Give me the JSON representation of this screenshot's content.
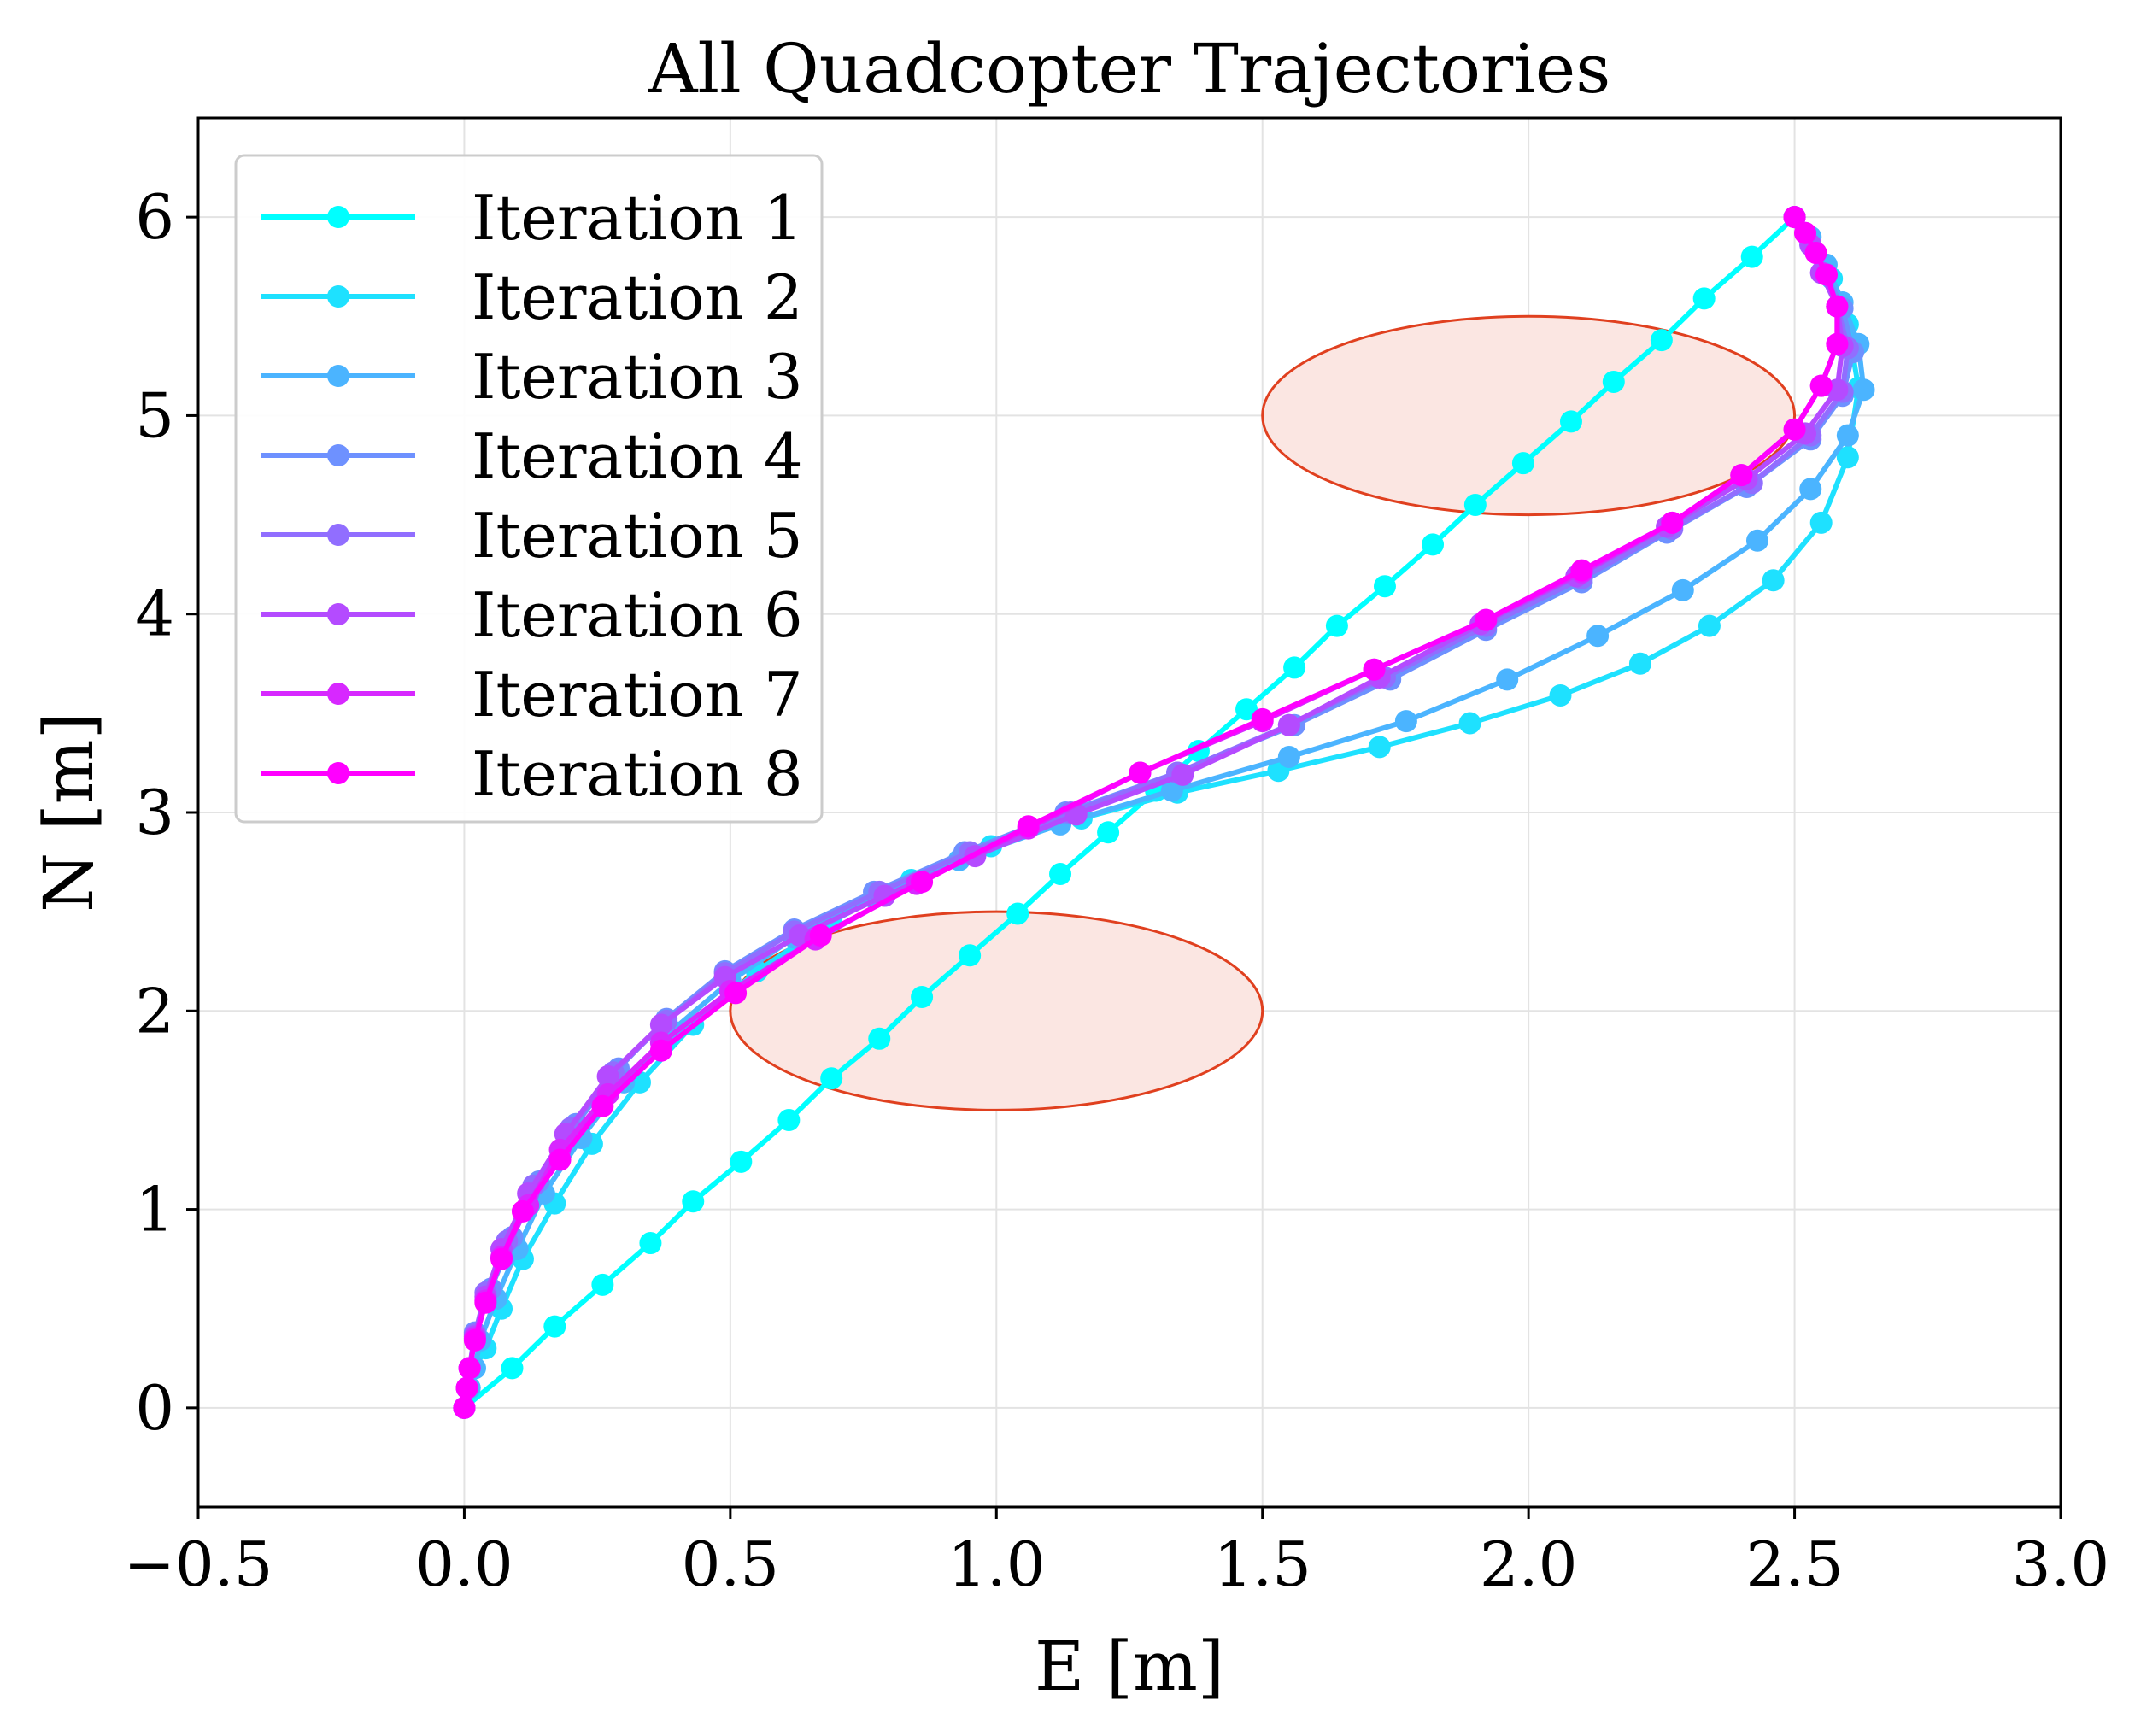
{
  "chart_data": {
    "type": "line",
    "title": "All Quadcopter Trajectories",
    "xlabel": "E [m]",
    "ylabel": "N [m]",
    "xlim": [
      -0.5,
      3.0
    ],
    "ylim": [
      -0.5,
      6.5
    ],
    "xticks": [
      -0.5,
      0.0,
      0.5,
      1.0,
      1.5,
      2.0,
      2.5,
      3.0
    ],
    "xtick_labels": [
      "−0.5",
      "0.0",
      "0.5",
      "1.0",
      "1.5",
      "2.0",
      "2.5",
      "3.0"
    ],
    "yticks": [
      0,
      1,
      2,
      3,
      4,
      5,
      6
    ],
    "ytick_labels": [
      "0",
      "1",
      "2",
      "3",
      "4",
      "5",
      "6"
    ],
    "grid": true,
    "legend_position": "upper-left",
    "obstacles": [
      {
        "center": [
          2.0,
          5.0
        ],
        "width": 1.0,
        "height": 1.0,
        "fill": "#fbe6e2",
        "stroke": "#e0401f"
      },
      {
        "center": [
          1.0,
          2.0
        ],
        "width": 1.0,
        "height": 1.0,
        "fill": "#fbe6e2",
        "stroke": "#e0401f"
      }
    ],
    "series": [
      {
        "name": "Iteration 1",
        "color": "#00ffff",
        "points": [
          [
            0,
            0
          ],
          [
            0.09,
            0.2
          ],
          [
            0.17,
            0.41
          ],
          [
            0.26,
            0.62
          ],
          [
            0.35,
            0.83
          ],
          [
            0.43,
            1.04
          ],
          [
            0.52,
            1.24
          ],
          [
            0.61,
            1.45
          ],
          [
            0.69,
            1.66
          ],
          [
            0.78,
            1.86
          ],
          [
            0.86,
            2.07
          ],
          [
            0.95,
            2.28
          ],
          [
            1.04,
            2.49
          ],
          [
            1.12,
            2.69
          ],
          [
            1.21,
            2.9
          ],
          [
            1.3,
            3.11
          ],
          [
            1.38,
            3.31
          ],
          [
            1.47,
            3.52
          ],
          [
            1.56,
            3.73
          ],
          [
            1.64,
            3.94
          ],
          [
            1.73,
            4.14
          ],
          [
            1.82,
            4.35
          ],
          [
            1.9,
            4.55
          ],
          [
            1.99,
            4.76
          ],
          [
            2.08,
            4.97
          ],
          [
            2.16,
            5.17
          ],
          [
            2.25,
            5.38
          ],
          [
            2.33,
            5.59
          ],
          [
            2.42,
            5.8
          ],
          [
            2.5,
            6.0
          ]
        ]
      },
      {
        "name": "Iteration 2",
        "color": "#1ee1ff",
        "points": [
          [
            0,
            0
          ],
          [
            0.01,
            0.1
          ],
          [
            0.02,
            0.2
          ],
          [
            0.04,
            0.3
          ],
          [
            0.07,
            0.5
          ],
          [
            0.11,
            0.75
          ],
          [
            0.17,
            1.03
          ],
          [
            0.24,
            1.33
          ],
          [
            0.33,
            1.64
          ],
          [
            0.43,
            1.93
          ],
          [
            0.55,
            2.2
          ],
          [
            0.69,
            2.45
          ],
          [
            0.84,
            2.66
          ],
          [
            0.99,
            2.83
          ],
          [
            1.16,
            2.97
          ],
          [
            1.34,
            3.1
          ],
          [
            1.53,
            3.21
          ],
          [
            1.72,
            3.33
          ],
          [
            1.89,
            3.45
          ],
          [
            2.06,
            3.59
          ],
          [
            2.21,
            3.75
          ],
          [
            2.34,
            3.94
          ],
          [
            2.46,
            4.17
          ],
          [
            2.55,
            4.46
          ],
          [
            2.6,
            4.79
          ],
          [
            2.62,
            5.14
          ],
          [
            2.6,
            5.46
          ],
          [
            2.57,
            5.69
          ],
          [
            2.53,
            5.86
          ],
          [
            2.5,
            6.0
          ]
        ]
      },
      {
        "name": "Iteration 3",
        "color": "#4bb4ff",
        "points": [
          [
            0,
            0
          ],
          [
            0.01,
            0.1
          ],
          [
            0.02,
            0.2
          ],
          [
            0.03,
            0.34
          ],
          [
            0.06,
            0.55
          ],
          [
            0.1,
            0.8
          ],
          [
            0.15,
            1.08
          ],
          [
            0.22,
            1.36
          ],
          [
            0.3,
            1.64
          ],
          [
            0.39,
            1.9
          ],
          [
            0.5,
            2.15
          ],
          [
            0.62,
            2.37
          ],
          [
            0.77,
            2.57
          ],
          [
            0.93,
            2.76
          ],
          [
            1.12,
            2.94
          ],
          [
            1.33,
            3.11
          ],
          [
            1.55,
            3.28
          ],
          [
            1.77,
            3.46
          ],
          [
            1.96,
            3.67
          ],
          [
            2.13,
            3.89
          ],
          [
            2.29,
            4.12
          ],
          [
            2.43,
            4.37
          ],
          [
            2.53,
            4.63
          ],
          [
            2.6,
            4.9
          ],
          [
            2.63,
            5.13
          ],
          [
            2.62,
            5.36
          ],
          [
            2.59,
            5.57
          ],
          [
            2.56,
            5.76
          ],
          [
            2.53,
            5.9
          ],
          [
            2.5,
            6.0
          ]
        ]
      },
      {
        "name": "Iteration 4",
        "color": "#6e91ff",
        "points": [
          [
            0,
            0
          ],
          [
            0.005,
            0.1
          ],
          [
            0.01,
            0.2
          ],
          [
            0.02,
            0.38
          ],
          [
            0.05,
            0.6
          ],
          [
            0.09,
            0.86
          ],
          [
            0.14,
            1.14
          ],
          [
            0.21,
            1.43
          ],
          [
            0.29,
            1.71
          ],
          [
            0.38,
            1.96
          ],
          [
            0.49,
            2.2
          ],
          [
            0.62,
            2.41
          ],
          [
            0.77,
            2.6
          ],
          [
            0.94,
            2.8
          ],
          [
            1.13,
            3.0
          ],
          [
            1.34,
            3.2
          ],
          [
            1.56,
            3.44
          ],
          [
            1.74,
            3.67
          ],
          [
            1.92,
            3.92
          ],
          [
            2.1,
            4.16
          ],
          [
            2.26,
            4.41
          ],
          [
            2.41,
            4.64
          ],
          [
            2.53,
            4.88
          ],
          [
            2.59,
            5.1
          ],
          [
            2.61,
            5.32
          ],
          [
            2.59,
            5.54
          ],
          [
            2.56,
            5.71
          ],
          [
            2.53,
            5.86
          ],
          [
            2.5,
            6.0
          ]
        ]
      },
      {
        "name": "Iteration 5",
        "color": "#916eff",
        "points": [
          [
            0,
            0
          ],
          [
            0.005,
            0.1
          ],
          [
            0.01,
            0.2
          ],
          [
            0.02,
            0.37
          ],
          [
            0.04,
            0.58
          ],
          [
            0.08,
            0.84
          ],
          [
            0.13,
            1.12
          ],
          [
            0.2,
            1.41
          ],
          [
            0.28,
            1.69
          ],
          [
            0.38,
            1.95
          ],
          [
            0.49,
            2.19
          ],
          [
            0.62,
            2.4
          ],
          [
            0.78,
            2.6
          ],
          [
            0.95,
            2.8
          ],
          [
            1.14,
            3.0
          ],
          [
            1.34,
            3.2
          ],
          [
            1.55,
            3.44
          ],
          [
            1.73,
            3.68
          ],
          [
            1.92,
            3.94
          ],
          [
            2.1,
            4.18
          ],
          [
            2.27,
            4.43
          ],
          [
            2.42,
            4.66
          ],
          [
            2.53,
            4.9
          ],
          [
            2.59,
            5.12
          ],
          [
            2.6,
            5.34
          ],
          [
            2.58,
            5.55
          ],
          [
            2.55,
            5.72
          ],
          [
            2.53,
            5.86
          ],
          [
            2.5,
            6.0
          ]
        ]
      },
      {
        "name": "Iteration 6",
        "color": "#b44bff",
        "points": [
          [
            0,
            0
          ],
          [
            0.005,
            0.1
          ],
          [
            0.01,
            0.2
          ],
          [
            0.02,
            0.36
          ],
          [
            0.04,
            0.56
          ],
          [
            0.07,
            0.8
          ],
          [
            0.12,
            1.08
          ],
          [
            0.19,
            1.38
          ],
          [
            0.27,
            1.67
          ],
          [
            0.37,
            1.93
          ],
          [
            0.49,
            2.17
          ],
          [
            0.63,
            2.38
          ],
          [
            0.79,
            2.58
          ],
          [
            0.96,
            2.78
          ],
          [
            1.15,
            2.99
          ],
          [
            1.35,
            3.19
          ],
          [
            1.55,
            3.44
          ],
          [
            1.72,
            3.68
          ],
          [
            1.91,
            3.95
          ],
          [
            2.09,
            4.19
          ],
          [
            2.26,
            4.44
          ],
          [
            2.41,
            4.68
          ],
          [
            2.52,
            4.91
          ],
          [
            2.58,
            5.13
          ],
          [
            2.59,
            5.35
          ],
          [
            2.58,
            5.55
          ],
          [
            2.55,
            5.72
          ],
          [
            2.53,
            5.86
          ],
          [
            2.5,
            6.0
          ]
        ]
      },
      {
        "name": "Iteration 7",
        "color": "#d728ff",
        "points": [
          [
            0,
            0
          ],
          [
            0.005,
            0.1
          ],
          [
            0.01,
            0.2
          ],
          [
            0.02,
            0.35
          ],
          [
            0.04,
            0.54
          ],
          [
            0.07,
            0.76
          ],
          [
            0.12,
            1.02
          ],
          [
            0.18,
            1.3
          ],
          [
            0.27,
            1.58
          ],
          [
            0.37,
            1.84
          ],
          [
            0.5,
            2.1
          ],
          [
            0.66,
            2.36
          ],
          [
            0.85,
            2.64
          ],
          [
            1.06,
            2.92
          ],
          [
            1.27,
            3.2
          ],
          [
            1.5,
            3.46
          ],
          [
            1.71,
            3.72
          ],
          [
            1.92,
            3.97
          ],
          [
            2.1,
            4.21
          ],
          [
            2.27,
            4.46
          ],
          [
            2.4,
            4.7
          ],
          [
            2.5,
            4.93
          ],
          [
            2.55,
            5.15
          ],
          [
            2.58,
            5.36
          ],
          [
            2.58,
            5.55
          ],
          [
            2.56,
            5.71
          ],
          [
            2.54,
            5.82
          ],
          [
            2.52,
            5.92
          ],
          [
            2.5,
            6.0
          ]
        ]
      },
      {
        "name": "Iteration 8",
        "color": "#ff00ff",
        "points": [
          [
            0,
            0
          ],
          [
            0.005,
            0.1
          ],
          [
            0.01,
            0.2
          ],
          [
            0.02,
            0.34
          ],
          [
            0.04,
            0.53
          ],
          [
            0.07,
            0.75
          ],
          [
            0.11,
            0.99
          ],
          [
            0.18,
            1.25
          ],
          [
            0.26,
            1.52
          ],
          [
            0.37,
            1.8
          ],
          [
            0.51,
            2.09
          ],
          [
            0.67,
            2.38
          ],
          [
            0.86,
            2.65
          ],
          [
            1.06,
            2.93
          ],
          [
            1.27,
            3.2
          ],
          [
            1.5,
            3.47
          ],
          [
            1.71,
            3.72
          ],
          [
            1.92,
            3.97
          ],
          [
            2.1,
            4.22
          ],
          [
            2.27,
            4.46
          ],
          [
            2.4,
            4.7
          ],
          [
            2.5,
            4.93
          ],
          [
            2.55,
            5.15
          ],
          [
            2.58,
            5.36
          ],
          [
            2.58,
            5.55
          ],
          [
            2.56,
            5.71
          ],
          [
            2.54,
            5.82
          ],
          [
            2.52,
            5.92
          ],
          [
            2.5,
            6.0
          ]
        ]
      }
    ]
  }
}
